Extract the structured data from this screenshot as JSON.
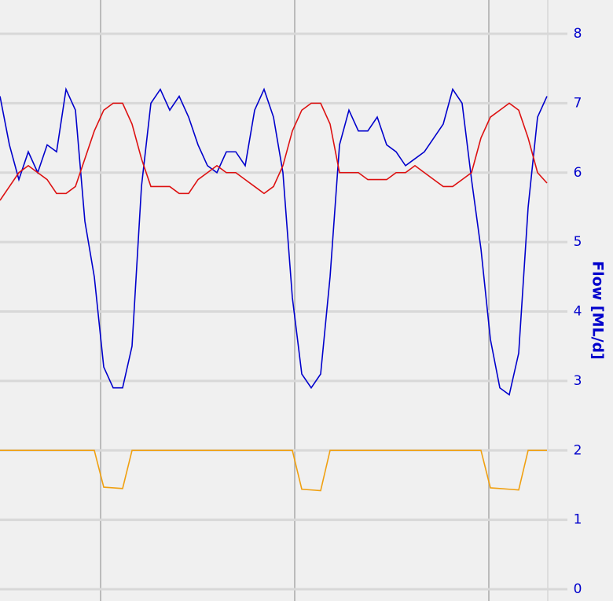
{
  "chart_data": {
    "type": "line",
    "y_label": "Flow [ML/d]",
    "ylim": [
      0,
      8
    ],
    "yticks": [
      0,
      1,
      2,
      3,
      4,
      5,
      6,
      7,
      8
    ],
    "grid": true,
    "categories": [
      null,
      null,
      null,
      null,
      null,
      null,
      null,
      null,
      null,
      null,
      null,
      null,
      null,
      null,
      null,
      null,
      null,
      null,
      null,
      null,
      null,
      null,
      null,
      null,
      null,
      null,
      null,
      null,
      null,
      null,
      null,
      null,
      null,
      null,
      null,
      null,
      null,
      null,
      null,
      null,
      null,
      null,
      null,
      null,
      null,
      null,
      null,
      null,
      null,
      null,
      null,
      null,
      null,
      null,
      null,
      null,
      null,
      null,
      null
    ],
    "series": [
      {
        "color": "#0000cc",
        "values": [
          7.1,
          6.4,
          5.9,
          6.3,
          6.0,
          6.4,
          6.3,
          7.2,
          6.9,
          5.3,
          4.5,
          3.2,
          2.9,
          2.9,
          3.5,
          5.8,
          7.0,
          7.2,
          6.9,
          7.1,
          6.8,
          6.4,
          6.1,
          6.0,
          6.3,
          6.3,
          6.1,
          6.9,
          7.2,
          6.8,
          6.0,
          4.2,
          3.1,
          2.9,
          3.1,
          4.5,
          6.4,
          6.9,
          6.6,
          6.6,
          6.8,
          6.4,
          6.3,
          6.1,
          6.2,
          6.3,
          6.5,
          6.7,
          7.2,
          7.0,
          5.9,
          4.9,
          3.6,
          2.9,
          2.8,
          3.4,
          5.5,
          6.8,
          7.1
        ]
      },
      {
        "color": "#dd1111",
        "values": [
          5.6,
          5.8,
          6.0,
          6.1,
          6.0,
          5.9,
          5.7,
          5.7,
          5.8,
          6.2,
          6.6,
          6.9,
          7.0,
          7.0,
          6.7,
          6.2,
          5.8,
          5.8,
          5.8,
          5.7,
          5.7,
          5.9,
          6.0,
          6.1,
          6.0,
          6.0,
          5.9,
          5.8,
          5.7,
          5.8,
          6.1,
          6.6,
          6.9,
          7.0,
          7.0,
          6.7,
          6.0,
          6.0,
          6.0,
          5.9,
          5.9,
          5.9,
          6.0,
          6.0,
          6.1,
          6.0,
          5.9,
          5.8,
          5.8,
          5.9,
          6.0,
          6.5,
          6.8,
          6.9,
          7.0,
          6.9,
          6.5,
          6.0,
          5.85
        ]
      },
      {
        "color": "#f0a010",
        "values": [
          2.0,
          2.0,
          2.0,
          2.0,
          2.0,
          2.0,
          2.0,
          2.0,
          2.0,
          2.0,
          2.0,
          1.47,
          1.46,
          1.45,
          2.0,
          2.0,
          2.0,
          2.0,
          2.0,
          2.0,
          2.0,
          2.0,
          2.0,
          2.0,
          2.0,
          2.0,
          2.0,
          2.0,
          2.0,
          2.0,
          2.0,
          2.0,
          1.44,
          1.43,
          1.42,
          2.0,
          2.0,
          2.0,
          2.0,
          2.0,
          2.0,
          2.0,
          2.0,
          2.0,
          2.0,
          2.0,
          2.0,
          2.0,
          2.0,
          2.0,
          2.0,
          2.0,
          1.46,
          1.45,
          1.44,
          1.43,
          2.0,
          2.0,
          2.0
        ]
      }
    ]
  }
}
